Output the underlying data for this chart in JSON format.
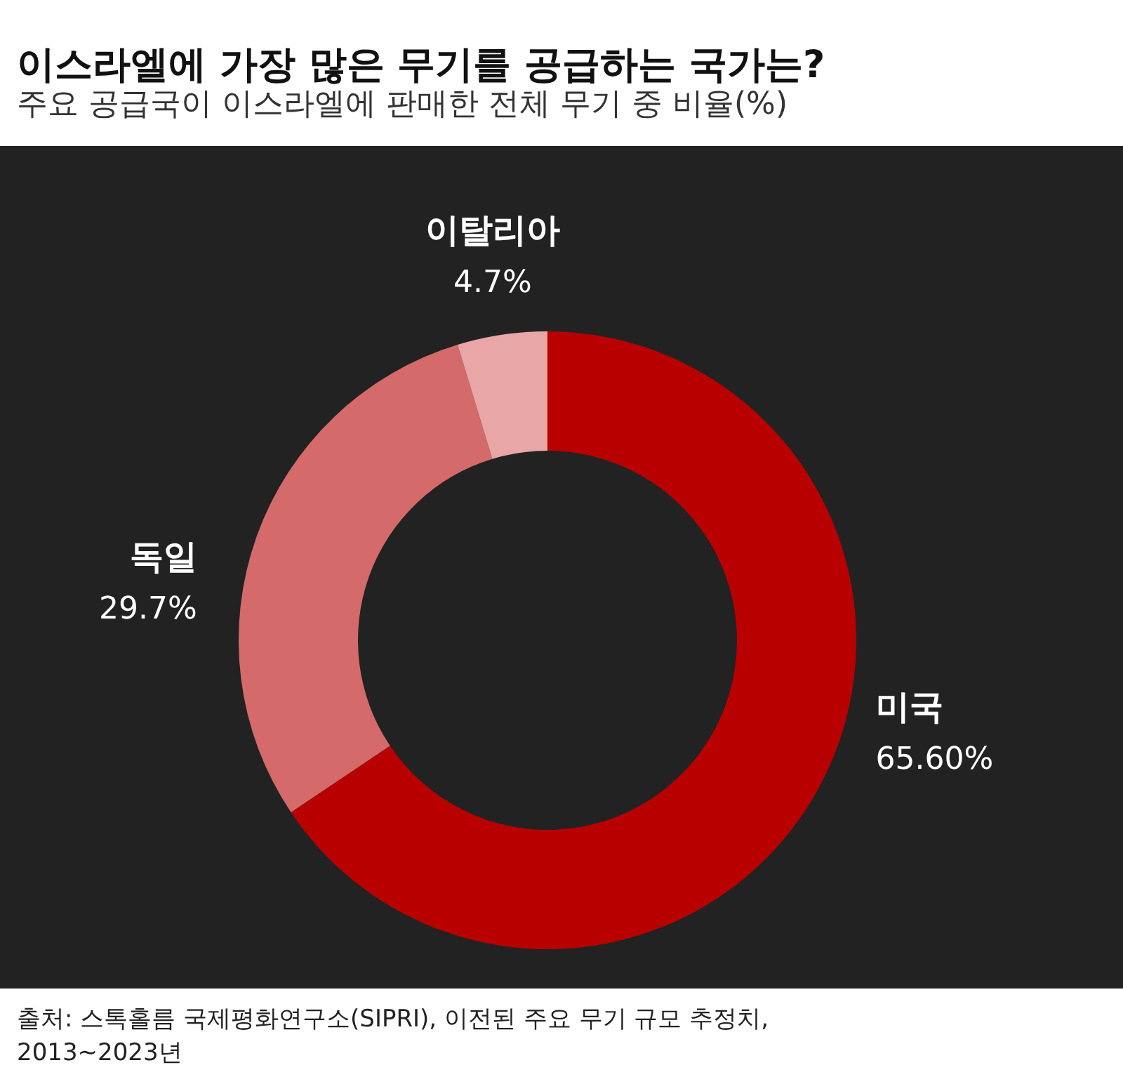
{
  "chart_data": {
    "type": "donut",
    "title": "이스라엘에 가장 많은 무기를 공급하는 국가는?",
    "subtitle": "주요 공급국이 이스라엘에 판매한 전체 무기 중 비율(%)",
    "categories": [
      "미국",
      "독일",
      "이탈리아"
    ],
    "values": [
      65.6,
      29.7,
      4.7
    ],
    "value_labels": [
      "65.60%",
      "29.7%",
      "4.7%"
    ],
    "colors": [
      "#b80000",
      "#d46a6a",
      "#e8a6a6"
    ],
    "annotations": [
      "출처: 스톡홀름 국제평화연구소(SIPRI), 이전된 주요 무기 규모 추정치,",
      "2013~2023년"
    ]
  }
}
